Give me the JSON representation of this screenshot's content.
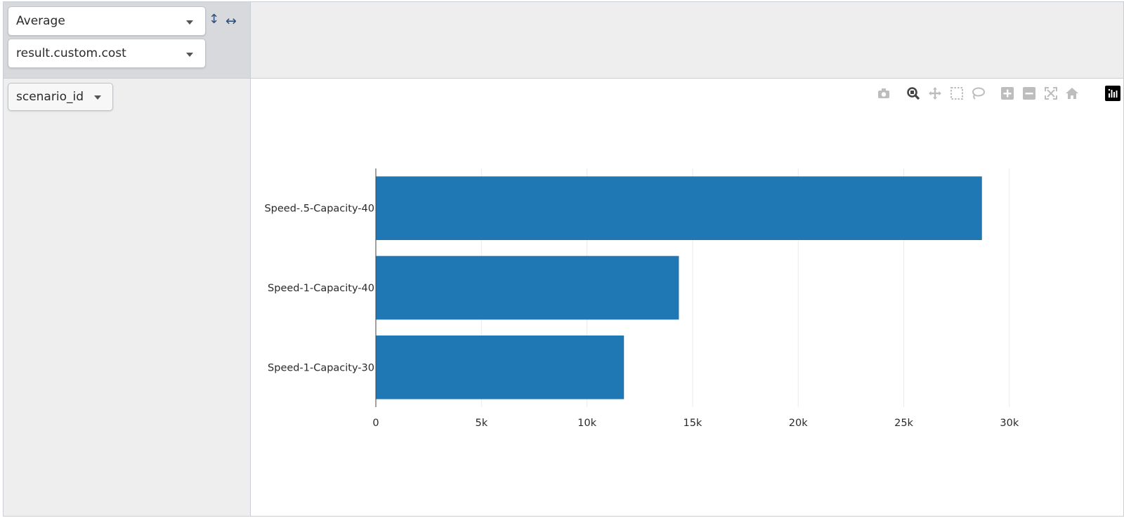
{
  "controls": {
    "aggregator": "Average",
    "aggregator_field": "result.custom.cost",
    "row_attribute": "scenario_id",
    "row_sort_symbol": "↕",
    "col_sort_symbol": "↔"
  },
  "modebar": {
    "buttons": [
      {
        "name": "camera-icon",
        "active": false
      },
      {
        "name": "zoom-icon",
        "active": true
      },
      {
        "name": "pan-icon",
        "active": false
      },
      {
        "name": "box-select-icon",
        "active": false
      },
      {
        "name": "lasso-select-icon",
        "active": false
      },
      {
        "name": "zoom-in-icon",
        "active": false
      },
      {
        "name": "zoom-out-icon",
        "active": false
      },
      {
        "name": "autoscale-icon",
        "active": false
      },
      {
        "name": "reset-axes-icon",
        "active": false
      },
      {
        "name": "plotly-logo-icon",
        "active": false
      }
    ]
  },
  "chart_data": {
    "type": "bar",
    "orientation": "horizontal",
    "categories": [
      "Speed-.5-Capacity-40",
      "Speed-1-Capacity-40",
      "Speed-1-Capacity-30"
    ],
    "values": [
      28700,
      14350,
      11750
    ],
    "title": "",
    "xlabel": "",
    "ylabel": "",
    "xlim": [
      0,
      32500
    ],
    "xticks": [
      0,
      5000,
      10000,
      15000,
      20000,
      25000,
      30000
    ],
    "xtick_labels": [
      "0",
      "5k",
      "10k",
      "15k",
      "20k",
      "25k",
      "30k"
    ],
    "grid": true,
    "bar_color": "#1f77b4"
  }
}
